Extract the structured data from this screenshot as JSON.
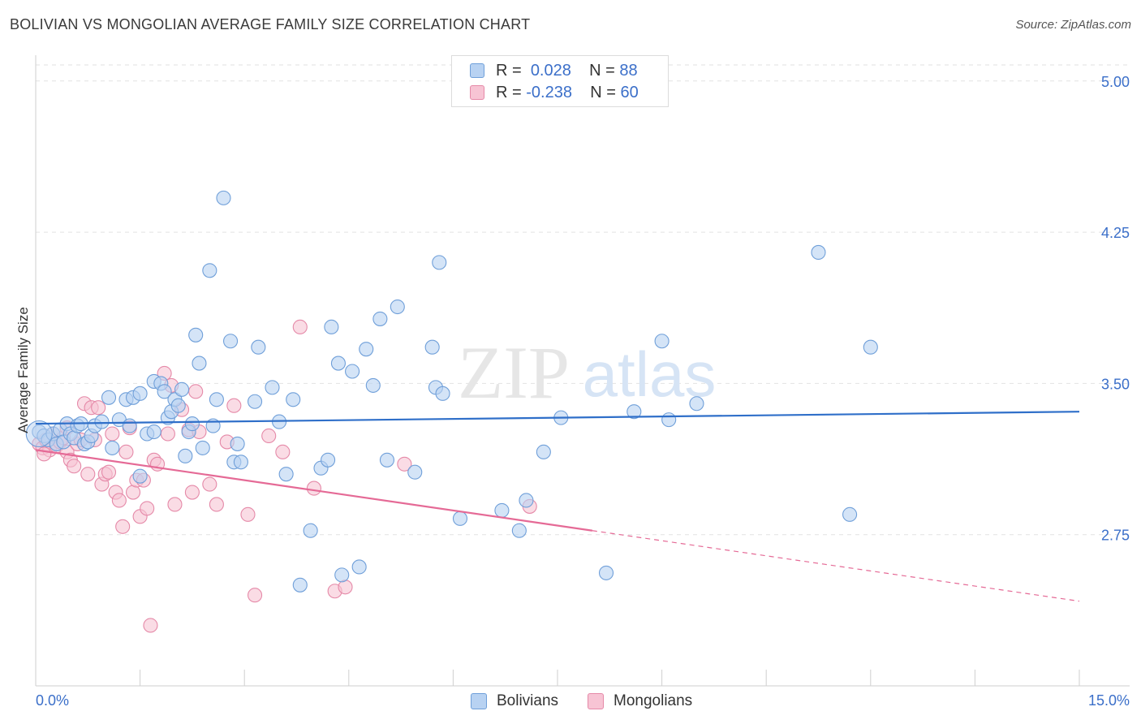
{
  "title": "BOLIVIAN VS MONGOLIAN AVERAGE FAMILY SIZE CORRELATION CHART",
  "source": "Source: ZipAtlas.com",
  "watermark": {
    "zip": "ZIP",
    "atlas": "atlas"
  },
  "legend_top": [
    {
      "r_label": "R =",
      "r_value": "0.028",
      "n_label": "N =",
      "n_value": "88"
    },
    {
      "r_label": "R =",
      "r_value": "-0.238",
      "n_label": "N =",
      "n_value": "60"
    }
  ],
  "colors": {
    "blue_fill": "#b8d2f2",
    "blue_stroke": "#6f9fd9",
    "blue_line": "#2f6fc9",
    "pink_fill": "#f7c4d4",
    "pink_stroke": "#e589a8",
    "pink_line": "#e56a96",
    "axis_label": "#3b6fc9",
    "grid": "#e2e2e2"
  },
  "chart_data": {
    "type": "scatter",
    "title": "BOLIVIAN VS MONGOLIAN AVERAGE FAMILY SIZE CORRELATION CHART",
    "xlabel": "",
    "ylabel": "Average Family Size",
    "xlim": [
      0,
      15
    ],
    "ylim": [
      2.0,
      5.12
    ],
    "x_tick_labels": [
      "0.0%",
      "15.0%"
    ],
    "y_ticks": [
      2.75,
      3.5,
      4.25,
      5.0
    ],
    "y_tick_labels": [
      "2.75",
      "3.50",
      "4.25",
      "5.00"
    ],
    "series": [
      {
        "name": "Bolivians",
        "r": 0.028,
        "n": 88,
        "trend": {
          "x0": 0,
          "y0": 3.3,
          "x1": 15,
          "y1": 3.36
        },
        "points": [
          [
            0.05,
            3.26
          ],
          [
            0.12,
            3.24
          ],
          [
            0.18,
            3.22
          ],
          [
            0.25,
            3.25
          ],
          [
            0.3,
            3.2
          ],
          [
            0.35,
            3.27
          ],
          [
            0.4,
            3.21
          ],
          [
            0.45,
            3.3
          ],
          [
            0.5,
            3.25
          ],
          [
            0.55,
            3.23
          ],
          [
            0.6,
            3.29
          ],
          [
            0.65,
            3.3
          ],
          [
            0.7,
            3.2
          ],
          [
            0.75,
            3.21
          ],
          [
            0.8,
            3.24
          ],
          [
            0.85,
            3.29
          ],
          [
            0.95,
            3.31
          ],
          [
            1.05,
            3.43
          ],
          [
            1.1,
            3.18
          ],
          [
            1.2,
            3.32
          ],
          [
            1.3,
            3.42
          ],
          [
            1.35,
            3.29
          ],
          [
            1.4,
            3.43
          ],
          [
            1.5,
            3.45
          ],
          [
            1.5,
            3.04
          ],
          [
            1.6,
            3.25
          ],
          [
            1.7,
            3.26
          ],
          [
            1.7,
            3.51
          ],
          [
            1.8,
            3.5
          ],
          [
            1.85,
            3.46
          ],
          [
            1.9,
            3.33
          ],
          [
            1.95,
            3.36
          ],
          [
            2.0,
            3.42
          ],
          [
            2.05,
            3.39
          ],
          [
            2.1,
            3.47
          ],
          [
            2.15,
            3.14
          ],
          [
            2.2,
            3.26
          ],
          [
            2.25,
            3.3
          ],
          [
            2.3,
            3.74
          ],
          [
            2.35,
            3.6
          ],
          [
            2.4,
            3.18
          ],
          [
            2.5,
            4.06
          ],
          [
            2.55,
            3.29
          ],
          [
            2.6,
            3.42
          ],
          [
            2.7,
            4.42
          ],
          [
            2.8,
            3.71
          ],
          [
            2.85,
            3.11
          ],
          [
            2.9,
            3.2
          ],
          [
            2.95,
            3.11
          ],
          [
            3.15,
            3.41
          ],
          [
            3.2,
            3.68
          ],
          [
            3.4,
            3.48
          ],
          [
            3.5,
            3.31
          ],
          [
            3.6,
            3.05
          ],
          [
            3.7,
            3.42
          ],
          [
            3.8,
            2.5
          ],
          [
            3.95,
            2.77
          ],
          [
            4.1,
            3.08
          ],
          [
            4.2,
            3.12
          ],
          [
            4.25,
            3.78
          ],
          [
            4.35,
            3.6
          ],
          [
            4.4,
            2.55
          ],
          [
            4.55,
            3.56
          ],
          [
            4.65,
            2.59
          ],
          [
            4.75,
            3.67
          ],
          [
            4.85,
            3.49
          ],
          [
            4.95,
            3.82
          ],
          [
            5.05,
            3.12
          ],
          [
            5.2,
            3.88
          ],
          [
            5.45,
            3.06
          ],
          [
            5.7,
            3.68
          ],
          [
            5.75,
            3.48
          ],
          [
            5.8,
            4.1
          ],
          [
            5.85,
            3.45
          ],
          [
            6.1,
            2.83
          ],
          [
            6.7,
            2.87
          ],
          [
            6.95,
            2.77
          ],
          [
            7.05,
            2.92
          ],
          [
            7.3,
            3.16
          ],
          [
            7.55,
            3.33
          ],
          [
            8.2,
            2.56
          ],
          [
            8.6,
            3.36
          ],
          [
            9.0,
            3.71
          ],
          [
            9.1,
            3.32
          ],
          [
            9.5,
            3.4
          ],
          [
            11.25,
            4.15
          ],
          [
            11.7,
            2.85
          ],
          [
            12.0,
            3.68
          ]
        ]
      },
      {
        "name": "Mongolians",
        "r": -0.238,
        "n": 60,
        "trend": {
          "x0": 0,
          "y0": 3.17,
          "x1": 8.0,
          "y1": 2.77,
          "dash_x1": 15,
          "dash_y1": 2.42
        },
        "points": [
          [
            0.05,
            3.2
          ],
          [
            0.1,
            3.18
          ],
          [
            0.15,
            3.22
          ],
          [
            0.2,
            3.17
          ],
          [
            0.25,
            3.25
          ],
          [
            0.3,
            3.19
          ],
          [
            0.35,
            3.21
          ],
          [
            0.4,
            3.23
          ],
          [
            0.45,
            3.16
          ],
          [
            0.5,
            3.12
          ],
          [
            0.55,
            3.09
          ],
          [
            0.6,
            3.2
          ],
          [
            0.65,
            3.22
          ],
          [
            0.7,
            3.4
          ],
          [
            0.75,
            3.05
          ],
          [
            0.8,
            3.38
          ],
          [
            0.85,
            3.22
          ],
          [
            0.9,
            3.38
          ],
          [
            0.95,
            3.0
          ],
          [
            1.0,
            3.05
          ],
          [
            1.05,
            3.06
          ],
          [
            1.1,
            3.25
          ],
          [
            1.15,
            2.96
          ],
          [
            1.2,
            2.92
          ],
          [
            1.25,
            2.79
          ],
          [
            1.3,
            3.16
          ],
          [
            1.35,
            3.28
          ],
          [
            1.4,
            2.96
          ],
          [
            1.45,
            3.02
          ],
          [
            1.5,
            2.84
          ],
          [
            1.55,
            3.02
          ],
          [
            1.6,
            2.88
          ],
          [
            1.65,
            2.3
          ],
          [
            1.7,
            3.12
          ],
          [
            1.75,
            3.1
          ],
          [
            1.85,
            3.55
          ],
          [
            1.9,
            3.25
          ],
          [
            1.95,
            3.49
          ],
          [
            2.0,
            2.9
          ],
          [
            2.1,
            3.37
          ],
          [
            2.2,
            3.27
          ],
          [
            2.25,
            2.96
          ],
          [
            2.3,
            3.46
          ],
          [
            2.35,
            3.26
          ],
          [
            2.5,
            3.0
          ],
          [
            2.6,
            2.9
          ],
          [
            2.75,
            3.21
          ],
          [
            2.85,
            3.39
          ],
          [
            3.05,
            2.85
          ],
          [
            3.15,
            2.45
          ],
          [
            3.35,
            3.24
          ],
          [
            3.55,
            3.16
          ],
          [
            3.8,
            3.78
          ],
          [
            4.0,
            2.98
          ],
          [
            4.3,
            2.47
          ],
          [
            4.45,
            2.49
          ],
          [
            5.3,
            3.1
          ],
          [
            7.1,
            2.89
          ],
          [
            0.12,
            3.15
          ],
          [
            0.45,
            3.28
          ]
        ]
      }
    ]
  }
}
